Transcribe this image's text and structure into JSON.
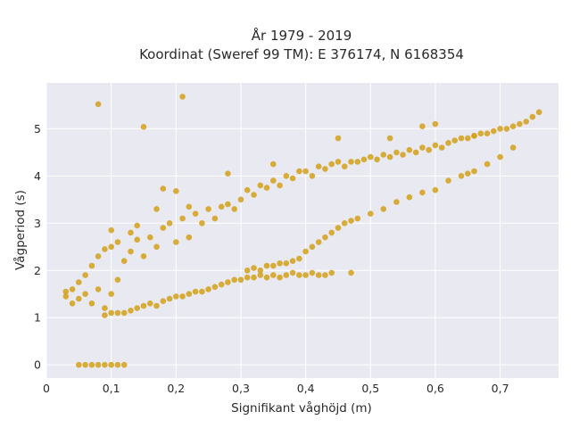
{
  "chart_data": {
    "type": "scatter",
    "title_line1": "År 1979 - 2019",
    "title_line2": "Koordinat (Sweref 99 TM): E 376174, N 6168354",
    "xlabel": "Signifikant våghöjd (m)",
    "ylabel": "Vågperiod (s)",
    "xlim": [
      0,
      0.79
    ],
    "ylim": [
      -0.28,
      5.97
    ],
    "x_ticks": [
      0,
      0.1,
      0.2,
      0.3,
      0.4,
      0.5,
      0.6,
      0.7
    ],
    "x_tick_labels": [
      "0",
      "0,1",
      "0,2",
      "0,3",
      "0,4",
      "0,5",
      "0,6",
      "0,7"
    ],
    "y_ticks": [
      0,
      1,
      2,
      3,
      4,
      5
    ],
    "y_tick_labels": [
      "0",
      "1",
      "2",
      "3",
      "4",
      "5"
    ],
    "grid": true,
    "legend": "none",
    "colors": {
      "marker": "#d4a017",
      "plot_bg": "#e9e9f1",
      "grid": "#ffffff"
    },
    "series": [
      {
        "points": [
          [
            0.03,
            1.45
          ],
          [
            0.03,
            1.55
          ],
          [
            0.04,
            1.3
          ],
          [
            0.04,
            1.6
          ],
          [
            0.05,
            1.4
          ],
          [
            0.05,
            1.75
          ],
          [
            0.06,
            1.5
          ],
          [
            0.06,
            1.9
          ],
          [
            0.07,
            1.3
          ],
          [
            0.07,
            2.1
          ],
          [
            0.08,
            1.6
          ],
          [
            0.08,
            2.3
          ],
          [
            0.09,
            1.2
          ],
          [
            0.09,
            2.45
          ],
          [
            0.1,
            1.5
          ],
          [
            0.1,
            2.5
          ],
          [
            0.11,
            1.8
          ],
          [
            0.11,
            2.6
          ],
          [
            0.12,
            2.2
          ],
          [
            0.13,
            2.4
          ],
          [
            0.13,
            2.8
          ],
          [
            0.14,
            2.65
          ],
          [
            0.15,
            2.3
          ],
          [
            0.16,
            2.7
          ],
          [
            0.17,
            2.5
          ],
          [
            0.18,
            2.9
          ],
          [
            0.19,
            3.0
          ],
          [
            0.2,
            2.6
          ],
          [
            0.21,
            3.1
          ],
          [
            0.22,
            2.7
          ],
          [
            0.23,
            3.2
          ],
          [
            0.24,
            3.0
          ],
          [
            0.25,
            3.3
          ],
          [
            0.26,
            3.1
          ],
          [
            0.27,
            3.35
          ],
          [
            0.28,
            3.4
          ],
          [
            0.29,
            3.3
          ],
          [
            0.3,
            3.5
          ],
          [
            0.31,
            3.7
          ],
          [
            0.32,
            3.6
          ],
          [
            0.33,
            3.8
          ],
          [
            0.34,
            3.75
          ],
          [
            0.35,
            3.9
          ],
          [
            0.36,
            3.8
          ],
          [
            0.37,
            4.0
          ],
          [
            0.38,
            3.95
          ],
          [
            0.39,
            4.1
          ],
          [
            0.4,
            4.1
          ],
          [
            0.41,
            4.0
          ],
          [
            0.42,
            4.2
          ],
          [
            0.43,
            4.15
          ],
          [
            0.44,
            4.25
          ],
          [
            0.45,
            4.3
          ],
          [
            0.46,
            4.2
          ],
          [
            0.47,
            4.3
          ],
          [
            0.48,
            4.3
          ],
          [
            0.49,
            4.35
          ],
          [
            0.5,
            4.4
          ],
          [
            0.51,
            4.35
          ],
          [
            0.52,
            4.45
          ],
          [
            0.53,
            4.4
          ],
          [
            0.54,
            4.5
          ],
          [
            0.55,
            4.45
          ],
          [
            0.56,
            4.55
          ],
          [
            0.57,
            4.5
          ],
          [
            0.58,
            4.6
          ],
          [
            0.59,
            4.55
          ],
          [
            0.6,
            4.65
          ],
          [
            0.61,
            4.6
          ],
          [
            0.62,
            4.7
          ],
          [
            0.63,
            4.75
          ],
          [
            0.64,
            4.8
          ],
          [
            0.65,
            4.8
          ],
          [
            0.66,
            4.85
          ],
          [
            0.67,
            4.9
          ],
          [
            0.68,
            4.9
          ],
          [
            0.69,
            4.95
          ],
          [
            0.7,
            5.0
          ],
          [
            0.71,
            5.0
          ],
          [
            0.72,
            5.05
          ],
          [
            0.73,
            5.1
          ],
          [
            0.74,
            5.15
          ],
          [
            0.75,
            5.25
          ],
          [
            0.76,
            5.35
          ],
          [
            0.09,
            1.05
          ],
          [
            0.1,
            1.1
          ],
          [
            0.11,
            1.1
          ],
          [
            0.12,
            1.1
          ],
          [
            0.13,
            1.15
          ],
          [
            0.14,
            1.2
          ],
          [
            0.15,
            1.25
          ],
          [
            0.16,
            1.3
          ],
          [
            0.17,
            1.25
          ],
          [
            0.18,
            1.35
          ],
          [
            0.19,
            1.4
          ],
          [
            0.2,
            1.45
          ],
          [
            0.21,
            1.45
          ],
          [
            0.22,
            1.5
          ],
          [
            0.23,
            1.55
          ],
          [
            0.24,
            1.55
          ],
          [
            0.25,
            1.6
          ],
          [
            0.26,
            1.65
          ],
          [
            0.27,
            1.7
          ],
          [
            0.28,
            1.75
          ],
          [
            0.29,
            1.8
          ],
          [
            0.3,
            1.8
          ],
          [
            0.31,
            1.85
          ],
          [
            0.32,
            1.85
          ],
          [
            0.33,
            1.9
          ],
          [
            0.34,
            1.85
          ],
          [
            0.35,
            1.9
          ],
          [
            0.36,
            1.85
          ],
          [
            0.37,
            1.9
          ],
          [
            0.38,
            1.95
          ],
          [
            0.39,
            1.9
          ],
          [
            0.4,
            1.9
          ],
          [
            0.41,
            1.95
          ],
          [
            0.42,
            1.9
          ],
          [
            0.43,
            1.9
          ],
          [
            0.44,
            1.95
          ],
          [
            0.31,
            2.0
          ],
          [
            0.32,
            2.05
          ],
          [
            0.33,
            2.0
          ],
          [
            0.34,
            2.1
          ],
          [
            0.35,
            2.1
          ],
          [
            0.36,
            2.15
          ],
          [
            0.37,
            2.15
          ],
          [
            0.38,
            2.2
          ],
          [
            0.39,
            2.25
          ],
          [
            0.4,
            2.4
          ],
          [
            0.41,
            2.5
          ],
          [
            0.42,
            2.6
          ],
          [
            0.43,
            2.7
          ],
          [
            0.44,
            2.8
          ],
          [
            0.45,
            2.9
          ],
          [
            0.46,
            3.0
          ],
          [
            0.47,
            3.05
          ],
          [
            0.48,
            3.1
          ],
          [
            0.5,
            3.2
          ],
          [
            0.52,
            3.3
          ],
          [
            0.54,
            3.45
          ],
          [
            0.56,
            3.55
          ],
          [
            0.58,
            3.65
          ],
          [
            0.6,
            3.7
          ],
          [
            0.62,
            3.9
          ],
          [
            0.64,
            4.0
          ],
          [
            0.66,
            4.1
          ],
          [
            0.68,
            4.25
          ],
          [
            0.7,
            4.4
          ],
          [
            0.72,
            4.6
          ],
          [
            0.05,
            0.0
          ],
          [
            0.06,
            0.0
          ],
          [
            0.07,
            0.0
          ],
          [
            0.08,
            0.0
          ],
          [
            0.09,
            0.0
          ],
          [
            0.1,
            0.0
          ],
          [
            0.11,
            0.0
          ],
          [
            0.12,
            0.0
          ],
          [
            0.08,
            5.52
          ],
          [
            0.15,
            5.04
          ],
          [
            0.21,
            5.68
          ],
          [
            0.18,
            3.73
          ],
          [
            0.2,
            3.68
          ],
          [
            0.17,
            3.3
          ],
          [
            0.28,
            4.05
          ],
          [
            0.45,
            4.8
          ],
          [
            0.47,
            1.95
          ],
          [
            0.53,
            4.8
          ],
          [
            0.58,
            5.05
          ],
          [
            0.6,
            5.1
          ],
          [
            0.66,
            4.85
          ],
          [
            0.65,
            4.05
          ],
          [
            0.1,
            2.85
          ],
          [
            0.14,
            2.95
          ],
          [
            0.22,
            3.35
          ],
          [
            0.35,
            4.25
          ]
        ]
      }
    ]
  }
}
